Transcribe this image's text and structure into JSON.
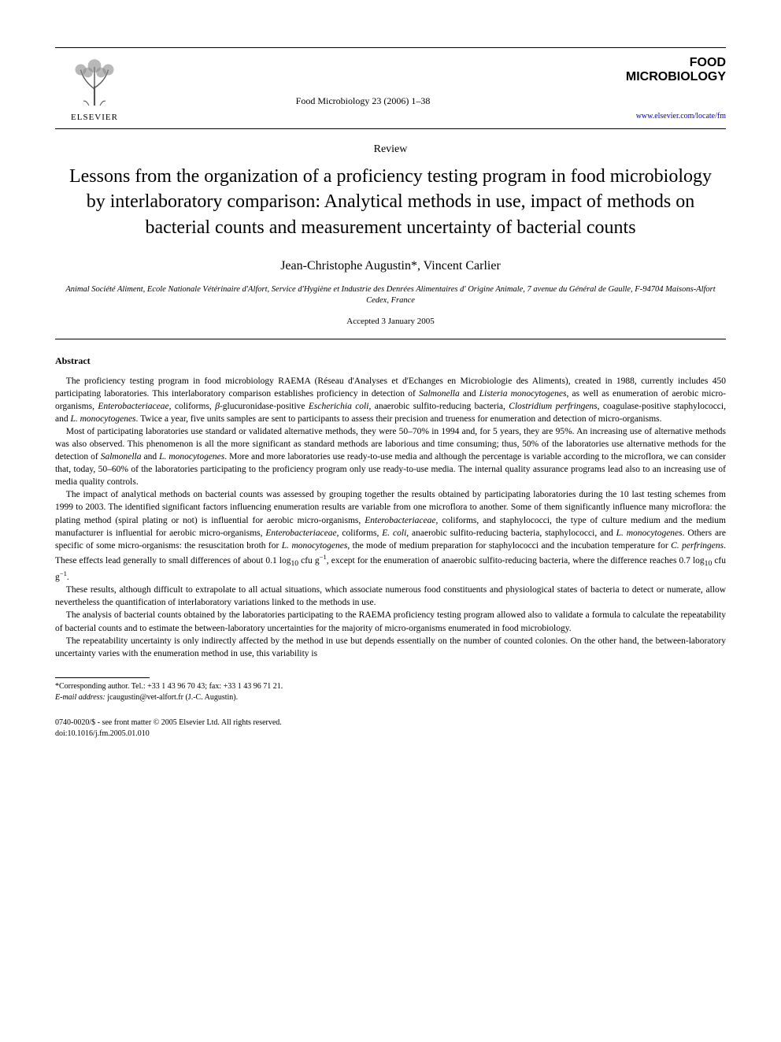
{
  "publisher": {
    "name": "ELSEVIER",
    "tree_color": "#e67817"
  },
  "journal": {
    "reference": "Food Microbiology 23 (2006) 1–38",
    "name_line1": "FOOD",
    "name_line2": "MICROBIOLOGY",
    "link": "www.elsevier.com/locate/fm"
  },
  "article": {
    "type": "Review",
    "title": "Lessons from the organization of a proficiency testing program in food microbiology by interlaboratory comparison: Analytical methods in use, impact of methods on bacterial counts and measurement uncertainty of bacterial counts",
    "authors_html": "Jean-Christophe Augustin*, Vincent Carlier",
    "affiliation_html": "Animal Société Aliment, Ecole Nationale Vétérinaire d'Alfort, Service d'Hygiène et Industrie des Denrées Alimentaires d' Origine Animale, 7 avenue du Général de Gaulle, F-94704 Maisons-Alfort Cedex, France",
    "accepted": "Accepted 3 January 2005"
  },
  "abstract": {
    "heading": "Abstract",
    "paragraphs": [
      "The proficiency testing program in food microbiology RAEMA (Réseau d'Analyses et d'Echanges en Microbiologie des Aliments), created in 1988, currently includes 450 participating laboratories. This interlaboratory comparison establishes proficiency in detection of <i>Salmonella</i> and <i>Listeria monocytogenes</i>, as well as enumeration of aerobic micro-organisms, <i>Enterobacteriaceae</i>, coliforms, <i>β</i>-glucuronidase-positive <i>Escherichia coli</i>, anaerobic sulfito-reducing bacteria, <i>Clostridium perfringens</i>, coagulase-positive staphylococci, and <i>L. monocytogenes</i>. Twice a year, five units samples are sent to participants to assess their precision and trueness for enumeration and detection of micro-organisms.",
      "Most of participating laboratories use standard or validated alternative methods, they were 50–70% in 1994 and, for 5 years, they are 95%. An increasing use of alternative methods was also observed. This phenomenon is all the more significant as standard methods are laborious and time consuming; thus, 50% of the laboratories use alternative methods for the detection of <i>Salmonella</i> and <i>L. monocytogenes</i>. More and more laboratories use ready-to-use media and although the percentage is variable according to the microflora, we can consider that, today, 50–60% of the laboratories participating to the proficiency program only use ready-to-use media. The internal quality assurance programs lead also to an increasing use of media quality controls.",
      "The impact of analytical methods on bacterial counts was assessed by grouping together the results obtained by participating laboratories during the 10 last testing schemes from 1999 to 2003. The identified significant factors influencing enumeration results are variable from one microflora to another. Some of them significantly influence many microflora: the plating method (spiral plating or not) is influential for aerobic micro-organisms, <i>Enterobacteriaceae</i>, coliforms, and staphylococci, the type of culture medium and the medium manufacturer is influential for aerobic micro-organisms, <i>Enterobacteriaceae</i>, coliforms, <i>E. coli</i>, anaerobic sulfito-reducing bacteria, staphylococci, and <i>L. monocytogenes</i>. Others are specific of some micro-organisms: the resuscitation broth for <i>L. monocytogenes</i>, the mode of medium preparation for staphylococci and the incubation temperature for <i>C. perfringens</i>. These effects lead generally to small differences of about 0.1 log<sub>10</sub> cfu g<sup>−1</sup>, except for the enumeration of anaerobic sulfito-reducing bacteria, where the difference reaches 0.7 log<sub>10</sub> cfu g<sup>−1</sup>.",
      "These results, although difficult to extrapolate to all actual situations, which associate numerous food constituents and physiological states of bacteria to detect or numerate, allow nevertheless the quantification of interlaboratory variations linked to the methods in use.",
      "The analysis of bacterial counts obtained by the laboratories participating to the RAEMA proficiency testing program allowed also to validate a formula to calculate the repeatability of bacterial counts and to estimate the between-laboratory uncertainties for the majority of micro-organisms enumerated in food microbiology.",
      "The repeatability uncertainty is only indirectly affected by the method in use but depends essentially on the number of counted colonies. On the other hand, the between-laboratory uncertainty varies with the enumeration method in use, this variability is"
    ]
  },
  "footnotes": {
    "corresponding": "*Corresponding author. Tel.: +33 1 43 96 70 43; fax: +33 1 43 96 71 21.",
    "email_label": "E-mail address:",
    "email": "jcaugustin@vet-alfort.fr (J.-C. Augustin)."
  },
  "copyright": {
    "line1": "0740-0020/$ - see front matter © 2005 Elsevier Ltd. All rights reserved.",
    "line2": "doi:10.1016/j.fm.2005.01.010"
  }
}
